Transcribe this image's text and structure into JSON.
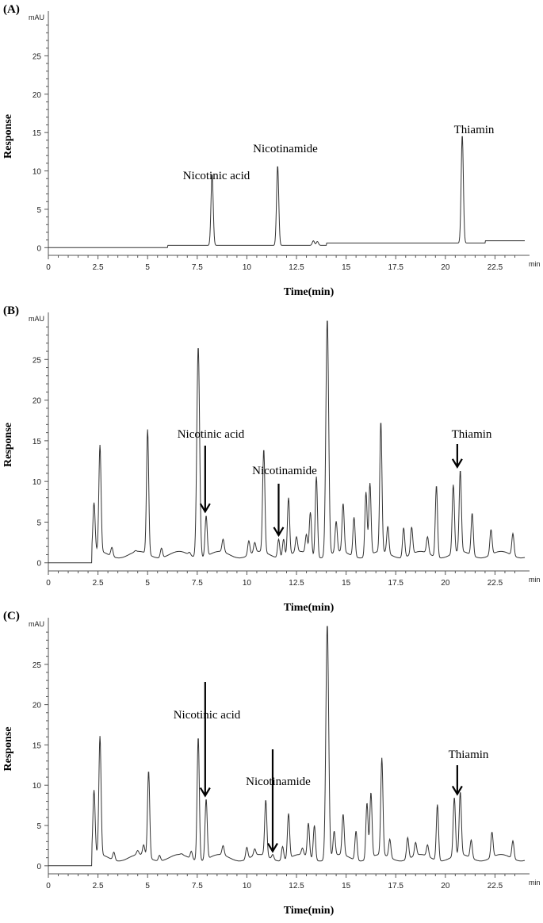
{
  "figure": {
    "panels": [
      {
        "label": "(A)",
        "unit": "mAU",
        "x_unit": "min",
        "xlabel": "Time(min)",
        "ylabel": "Response",
        "xlim": [
          0,
          24
        ],
        "ylim": [
          -1,
          30
        ],
        "x_ticks": [
          "0",
          "2.5",
          "5",
          "7.5",
          "10",
          "12.5",
          "15",
          "17.5",
          "20",
          "22.5"
        ],
        "y_ticks": [
          "0",
          "5",
          "10",
          "15",
          "20",
          "25"
        ],
        "baseline": {
          "start": 0.0,
          "rise_at": 2.0,
          "level": 0.0
        },
        "annotations": [
          {
            "text": "Nicotinic acid",
            "x": 8.2,
            "y": 9.6,
            "arrow": false
          },
          {
            "text": "Nicotinamide",
            "x": 11.5,
            "y": 10.7,
            "arrow": false
          },
          {
            "text": "Thiamin",
            "x": 20.8,
            "y": 14.7,
            "arrow": false
          }
        ]
      },
      {
        "label": "(B)",
        "unit": "mAU",
        "x_unit": "min",
        "xlabel": "Time(min)",
        "ylabel": "Response",
        "xlim": [
          0,
          24
        ],
        "ylim": [
          -1,
          30
        ],
        "x_ticks": [
          "0",
          "2.5",
          "5",
          "7.5",
          "10",
          "12.5",
          "15",
          "17.5",
          "20",
          "22.5"
        ],
        "y_ticks": [
          "0",
          "5",
          "10",
          "15",
          "20",
          "25"
        ],
        "baseline": {
          "start": 0.0,
          "rise_at": 2.2,
          "level": 1.0
        },
        "annotations": [
          {
            "text": "Nicotinic acid",
            "x": 7.9,
            "y": 5.9,
            "arrow": true
          },
          {
            "text": "Nicotinamide",
            "x": 11.6,
            "y": 3.0,
            "arrow": true
          },
          {
            "text": "Thiamin",
            "x": 20.6,
            "y": 11.4,
            "arrow": true
          }
        ]
      },
      {
        "label": "(C)",
        "unit": "mAU",
        "x_unit": "min",
        "xlabel": "Time(min)",
        "ylabel": "Response",
        "xlim": [
          0,
          24
        ],
        "ylim": [
          -1,
          30
        ],
        "x_ticks": [
          "0",
          "2.5",
          "5",
          "7.5",
          "10",
          "12.5",
          "15",
          "17.5",
          "20",
          "22.5"
        ],
        "y_ticks": [
          "0",
          "5",
          "10",
          "15",
          "20",
          "25"
        ],
        "baseline": {
          "start": 0.0,
          "rise_at": 2.2,
          "level": 1.0
        },
        "annotations": [
          {
            "text": "Nicotinic acid",
            "x": 7.9,
            "y": 8.3,
            "arrow": true
          },
          {
            "text": "Nicotinamide",
            "x": 11.3,
            "y": 1.4,
            "arrow": true
          },
          {
            "text": "Thiamin",
            "x": 20.6,
            "y": 8.5,
            "arrow": true
          }
        ]
      }
    ]
  },
  "chart_data": [
    {
      "type": "line",
      "title": "(A)",
      "xlabel": "Time(min)",
      "ylabel": "Response",
      "y_unit": "mAU",
      "xlim": [
        0,
        24
      ],
      "ylim": [
        -1,
        30
      ],
      "grid": false,
      "series": [
        {
          "peaks": [
            {
              "x": 8.25,
              "y": 9.6,
              "label": "Nicotinic acid"
            },
            {
              "x": 11.55,
              "y": 10.7,
              "label": "Nicotinamide"
            },
            {
              "x": 13.35,
              "y": 0.9
            },
            {
              "x": 13.55,
              "y": 0.8
            },
            {
              "x": 20.85,
              "y": 14.7,
              "label": "Thiamin"
            }
          ]
        }
      ]
    },
    {
      "type": "line",
      "title": "(B)",
      "xlabel": "Time(min)",
      "ylabel": "Response",
      "y_unit": "mAU",
      "xlim": [
        0,
        24
      ],
      "ylim": [
        -1,
        30
      ],
      "grid": false,
      "series": [
        {
          "peaks": [
            {
              "x": 2.3,
              "y": 7.4
            },
            {
              "x": 2.6,
              "y": 14.5
            },
            {
              "x": 3.2,
              "y": 1.9
            },
            {
              "x": 4.4,
              "y": 1.5
            },
            {
              "x": 5.0,
              "y": 16.4
            },
            {
              "x": 5.7,
              "y": 1.8
            },
            {
              "x": 6.7,
              "y": 1.3
            },
            {
              "x": 7.1,
              "y": 1.3
            },
            {
              "x": 7.55,
              "y": 26.6
            },
            {
              "x": 7.95,
              "y": 5.8,
              "label": "Nicotinic acid"
            },
            {
              "x": 8.8,
              "y": 2.9
            },
            {
              "x": 10.1,
              "y": 2.7
            },
            {
              "x": 10.4,
              "y": 2.5
            },
            {
              "x": 10.85,
              "y": 14.0
            },
            {
              "x": 11.6,
              "y": 2.9,
              "label": "Nicotinamide"
            },
            {
              "x": 11.85,
              "y": 2.9
            },
            {
              "x": 12.1,
              "y": 8.0
            },
            {
              "x": 12.5,
              "y": 3.2
            },
            {
              "x": 13.0,
              "y": 3.5
            },
            {
              "x": 13.2,
              "y": 6.2
            },
            {
              "x": 13.5,
              "y": 10.6
            },
            {
              "x": 14.05,
              "y": 30.0
            },
            {
              "x": 14.5,
              "y": 5.1
            },
            {
              "x": 14.85,
              "y": 7.3
            },
            {
              "x": 15.4,
              "y": 5.6
            },
            {
              "x": 16.0,
              "y": 8.7
            },
            {
              "x": 16.2,
              "y": 9.8
            },
            {
              "x": 16.75,
              "y": 17.4
            },
            {
              "x": 17.1,
              "y": 4.5
            },
            {
              "x": 17.9,
              "y": 4.3
            },
            {
              "x": 18.3,
              "y": 4.4
            },
            {
              "x": 19.1,
              "y": 3.2
            },
            {
              "x": 19.55,
              "y": 9.5
            },
            {
              "x": 20.4,
              "y": 9.6
            },
            {
              "x": 20.75,
              "y": 11.4,
              "label": "Thiamin"
            },
            {
              "x": 21.35,
              "y": 6.1
            },
            {
              "x": 22.3,
              "y": 4.1
            },
            {
              "x": 23.4,
              "y": 3.6
            }
          ]
        }
      ]
    },
    {
      "type": "line",
      "title": "(C)",
      "xlabel": "Time(min)",
      "ylabel": "Response",
      "y_unit": "mAU",
      "xlim": [
        0,
        24
      ],
      "ylim": [
        -1,
        30
      ],
      "grid": false,
      "series": [
        {
          "peaks": [
            {
              "x": 2.3,
              "y": 9.4
            },
            {
              "x": 2.6,
              "y": 16.1
            },
            {
              "x": 3.3,
              "y": 1.7
            },
            {
              "x": 4.5,
              "y": 1.9
            },
            {
              "x": 4.8,
              "y": 2.6
            },
            {
              "x": 5.05,
              "y": 11.8
            },
            {
              "x": 5.6,
              "y": 1.3
            },
            {
              "x": 6.7,
              "y": 1.5
            },
            {
              "x": 7.2,
              "y": 1.8
            },
            {
              "x": 7.55,
              "y": 16.0
            },
            {
              "x": 7.95,
              "y": 8.3,
              "label": "Nicotinic acid"
            },
            {
              "x": 8.8,
              "y": 2.5
            },
            {
              "x": 10.0,
              "y": 2.3
            },
            {
              "x": 10.4,
              "y": 2.1
            },
            {
              "x": 10.95,
              "y": 8.2
            },
            {
              "x": 11.3,
              "y": 1.4,
              "label": "Nicotinamide"
            },
            {
              "x": 11.8,
              "y": 2.4
            },
            {
              "x": 12.1,
              "y": 6.5
            },
            {
              "x": 12.8,
              "y": 2.2
            },
            {
              "x": 13.1,
              "y": 5.3
            },
            {
              "x": 13.4,
              "y": 5.0
            },
            {
              "x": 14.05,
              "y": 30.0
            },
            {
              "x": 14.4,
              "y": 4.3
            },
            {
              "x": 14.85,
              "y": 6.4
            },
            {
              "x": 15.5,
              "y": 4.3
            },
            {
              "x": 16.05,
              "y": 7.8
            },
            {
              "x": 16.25,
              "y": 9.1
            },
            {
              "x": 16.8,
              "y": 13.4
            },
            {
              "x": 17.2,
              "y": 3.3
            },
            {
              "x": 18.1,
              "y": 3.5
            },
            {
              "x": 18.5,
              "y": 2.9
            },
            {
              "x": 19.1,
              "y": 2.6
            },
            {
              "x": 19.6,
              "y": 7.6
            },
            {
              "x": 20.45,
              "y": 8.5
            },
            {
              "x": 20.75,
              "y": 9.2,
              "label": "Thiamin"
            },
            {
              "x": 21.3,
              "y": 3.2
            },
            {
              "x": 22.35,
              "y": 4.2
            },
            {
              "x": 23.4,
              "y": 3.1
            }
          ]
        }
      ]
    }
  ]
}
